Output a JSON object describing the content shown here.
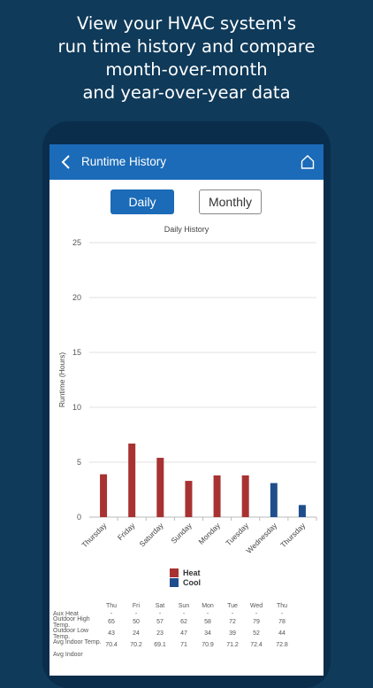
{
  "headline": {
    "line1": "View your HVAC system's",
    "line2": "run time history and compare",
    "line3": "month-over-month",
    "line4": "and year-over-year data"
  },
  "appbar": {
    "title": "Runtime History",
    "back_icon": "chevron-left-icon",
    "home_icon": "home-icon",
    "color": "#1b6bb8"
  },
  "toggle": {
    "daily_label": "Daily",
    "monthly_label": "Monthly",
    "selected": "Daily"
  },
  "chart_data": {
    "type": "bar",
    "title": "Daily History",
    "ylabel": "Runtime (Hours)",
    "xlabel": "",
    "ylim": [
      0,
      25
    ],
    "yticks": [
      "0",
      "5",
      "10",
      "15",
      "20",
      "25"
    ],
    "categories": [
      "Thursday",
      "Friday",
      "Saturday",
      "Sunday",
      "Monday",
      "Tuesday",
      "Wednesday",
      "Thursday"
    ],
    "series": [
      {
        "name": "Heat",
        "color": "#a83232",
        "values": [
          3.9,
          6.7,
          5.4,
          3.3,
          3.8,
          3.8,
          0,
          0
        ]
      },
      {
        "name": "Cool",
        "color": "#1f4e8c",
        "values": [
          0,
          0,
          0,
          0,
          0,
          0,
          3.1,
          1.1
        ]
      }
    ],
    "grid": true,
    "legend": "bottom-center"
  },
  "table": {
    "days": [
      "Thu",
      "Fri",
      "Sat",
      "Sun",
      "Mon",
      "Tue",
      "Wed",
      "Thu"
    ],
    "rows": [
      {
        "label": "Aux Heat",
        "values": [
          "-",
          "-",
          "-",
          "-",
          "-",
          "-",
          "-",
          "-"
        ]
      },
      {
        "label": "Outdoor High Temp.",
        "values": [
          "65",
          "50",
          "57",
          "62",
          "58",
          "72",
          "79",
          "78"
        ]
      },
      {
        "label": "Outdoor Low Temp.",
        "values": [
          "43",
          "24",
          "23",
          "47",
          "34",
          "39",
          "52",
          "44"
        ]
      },
      {
        "label": "Avg Indoor Temp.",
        "values": [
          "70.4",
          "70.2",
          "69.1",
          "71",
          "70.9",
          "71.2",
          "72.4",
          "72.8"
        ]
      },
      {
        "label": "Avg Indoor",
        "values": [
          "",
          "",
          "",
          "",
          "",
          "",
          "",
          ""
        ]
      }
    ]
  }
}
